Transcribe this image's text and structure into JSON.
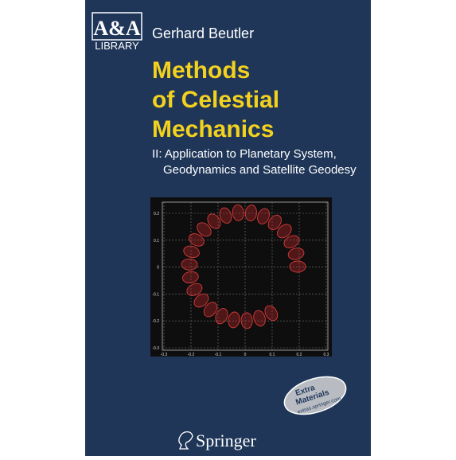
{
  "series_logo": {
    "mark": "A&A",
    "label": "LIBRARY"
  },
  "author": "Gerhard Beutler",
  "title": {
    "lines": [
      "Methods",
      "of Celestial",
      "Mechanics"
    ]
  },
  "subtitle": {
    "lines": [
      "II: Application to Planetary System,",
      "Geodynamics and Satellite Geodesy"
    ]
  },
  "figure": {
    "y_tick_labels": [
      "0.2",
      "0.1",
      "0",
      "-0.1",
      "-0.2",
      "-0.3"
    ],
    "x_tick_labels": [
      "-0.3",
      "-0.2",
      "-0.1",
      "0",
      "0.1",
      "0.2",
      "0.3"
    ]
  },
  "badge": {
    "lines": [
      "Extra",
      "Materials"
    ],
    "url": "extras.springer.com"
  },
  "publisher": "Springer"
}
